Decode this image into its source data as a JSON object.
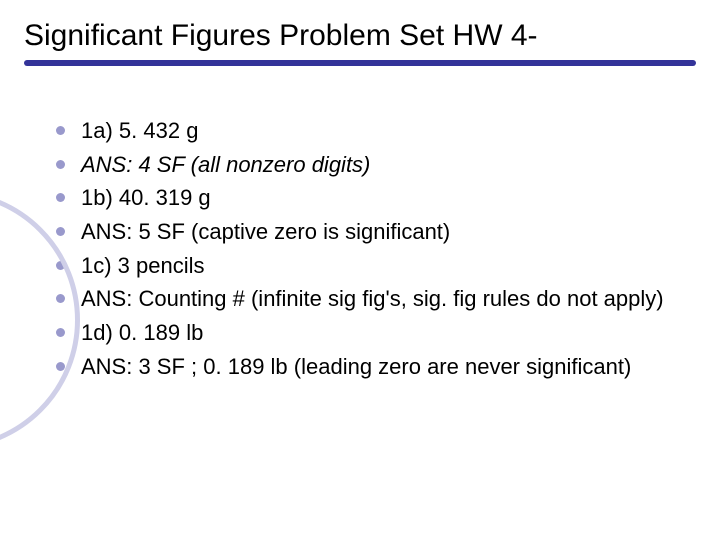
{
  "title": "Significant Figures Problem Set HW 4-",
  "title_fontsize": 30,
  "title_color": "#000000",
  "underline_color": "#333399",
  "bullet_color": "#9999cc",
  "arc_color": "#cfcfe8",
  "background_color": "#ffffff",
  "text_color": "#000000",
  "bullet_fontsize": 22,
  "items": [
    {
      "text": "1a) 5. 432 g",
      "italic": false
    },
    {
      "text": "ANS:  4  SF (all nonzero digits)",
      "italic": true
    },
    {
      "text": "1b) 40. 319 g",
      "italic": false
    },
    {
      "text": "ANS: 5 SF (captive zero is significant)",
      "italic": false
    },
    {
      "text": "1c) 3 pencils",
      "italic": false
    },
    {
      "text": "ANS: Counting # (infinite sig fig's, sig. fig rules do not apply)",
      "italic": false
    },
    {
      "text": "1d) 0. 189 lb",
      "italic": false
    },
    {
      "text": "ANS: 3 SF ; 0. 189 lb (leading zero are never significant)",
      "italic": false
    }
  ]
}
